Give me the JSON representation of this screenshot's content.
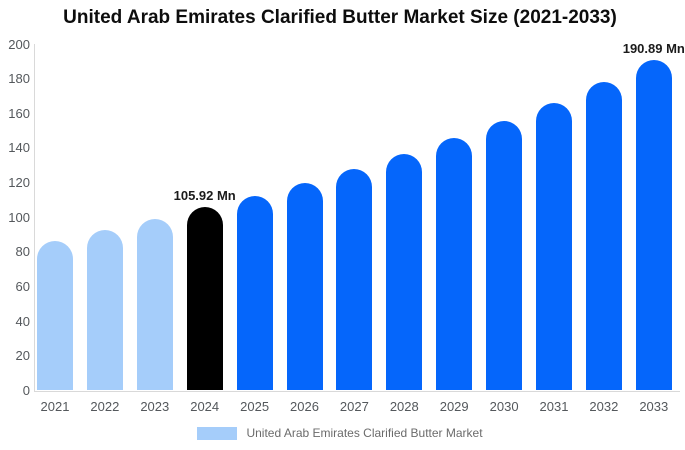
{
  "title": "United Arab Emirates Clarified Butter Market Size (2021-2033)",
  "legend": {
    "label": "United Arab Emirates Clarified Butter Market",
    "swatch_color": "#a5cdfa"
  },
  "palette": {
    "historical": "#a5cdfa",
    "highlight": "#000000",
    "forecast": "#0566fb",
    "axis_line": "#d9d9d9",
    "tick_text": "#54585c",
    "annotation_text": "#1b1b1b"
  },
  "chart_data": {
    "type": "bar",
    "title": "United Arab Emirates Clarified Butter Market Size (2021-2033)",
    "unit": "Mn",
    "categories": [
      "2021",
      "2022",
      "2023",
      "2024",
      "2025",
      "2026",
      "2027",
      "2028",
      "2029",
      "2030",
      "2031",
      "2032",
      "2033"
    ],
    "series": [
      {
        "name": "United Arab Emirates Clarified Butter Market",
        "values": [
          86,
          92.5,
          99,
          105.92,
          112.5,
          120,
          128,
          136.5,
          146,
          155.5,
          166,
          178,
          190.89
        ]
      }
    ],
    "bar_roles": [
      "historical",
      "historical",
      "historical",
      "highlight",
      "forecast",
      "forecast",
      "forecast",
      "forecast",
      "forecast",
      "forecast",
      "forecast",
      "forecast",
      "forecast"
    ],
    "annotations": [
      {
        "category": "2024",
        "text": "105.92 Mn"
      },
      {
        "category": "2033",
        "text": "190.89 Mn"
      }
    ],
    "xlabel": "",
    "ylabel": "",
    "ylim": [
      0,
      200
    ],
    "yticks": [
      0,
      20,
      40,
      60,
      80,
      100,
      120,
      140,
      160,
      180,
      200
    ],
    "grid": "off",
    "legend_position": "bottom"
  }
}
